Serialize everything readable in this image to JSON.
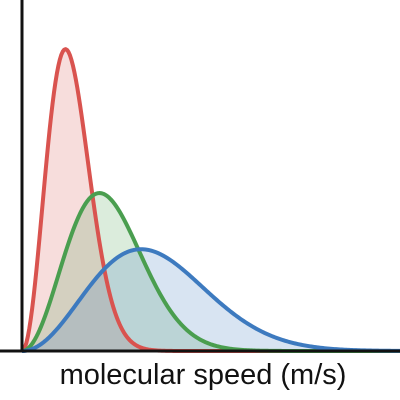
{
  "chart_data": {
    "type": "area",
    "xlabel": "molecular speed (m/s)",
    "ylabel": "",
    "grid": false,
    "legend": "none",
    "axes_color": "#111111",
    "x_ticks": [],
    "y_ticks": [],
    "series": [
      {
        "color": "#d9534f",
        "peak_x": 0.115,
        "peak_y": 0.86,
        "shape": "maxwell-boltzmann"
      },
      {
        "color": "#4a9e4f",
        "peak_x": 0.205,
        "peak_y": 0.45,
        "shape": "maxwell-boltzmann"
      },
      {
        "color": "#3d7abf",
        "peak_x": 0.315,
        "peak_y": 0.29,
        "shape": "maxwell-boltzmann"
      }
    ],
    "xlim": [
      0,
      1
    ],
    "ylim": [
      0,
      1
    ]
  }
}
